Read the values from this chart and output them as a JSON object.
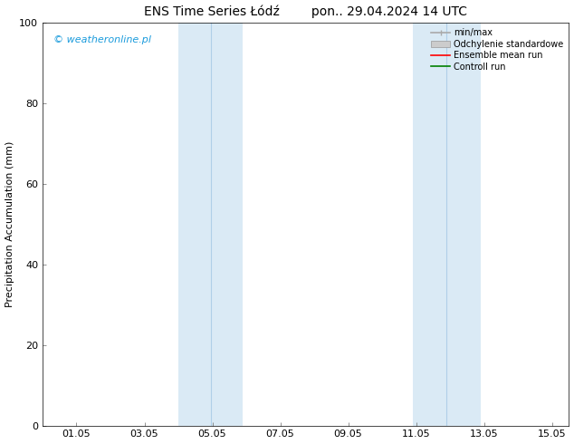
{
  "title": "ENS Time Series Łódź        pon.. 29.04.2024 14 UTC",
  "ylabel": "Precipitation Accumulation (mm)",
  "ylim": [
    0,
    100
  ],
  "xtick_labels": [
    "01.05",
    "03.05",
    "05.05",
    "07.05",
    "09.05",
    "11.05",
    "13.05",
    "15.05"
  ],
  "xtick_positions": [
    1,
    3,
    5,
    7,
    9,
    11,
    13,
    15
  ],
  "xlim": [
    0,
    15.5
  ],
  "shaded_bands": [
    {
      "x_start": 4.0,
      "x_end": 5.9
    },
    {
      "x_start": 10.9,
      "x_end": 12.9
    }
  ],
  "shaded_dividers": [
    4.95,
    11.9
  ],
  "shaded_color": "#daeaf5",
  "shaded_divider_color": "#b0cfe8",
  "watermark_text": "© weatheronline.pl",
  "watermark_color": "#1a9bdc",
  "legend_items": [
    {
      "label": "min/max",
      "color": "#aaaaaa",
      "lw": 1.2
    },
    {
      "label": "Odchylenie standardowe",
      "color": "#cccccc",
      "lw": 6
    },
    {
      "label": "Ensemble mean run",
      "color": "#ff0000",
      "lw": 1.2
    },
    {
      "label": "Controll run",
      "color": "#008000",
      "lw": 1.2
    }
  ],
  "ytick_positions": [
    0,
    20,
    40,
    60,
    80,
    100
  ],
  "title_fontsize": 10,
  "label_fontsize": 8,
  "tick_fontsize": 8,
  "watermark_fontsize": 8,
  "legend_fontsize": 7,
  "bg_color": "#ffffff",
  "axes_color": "#000000"
}
